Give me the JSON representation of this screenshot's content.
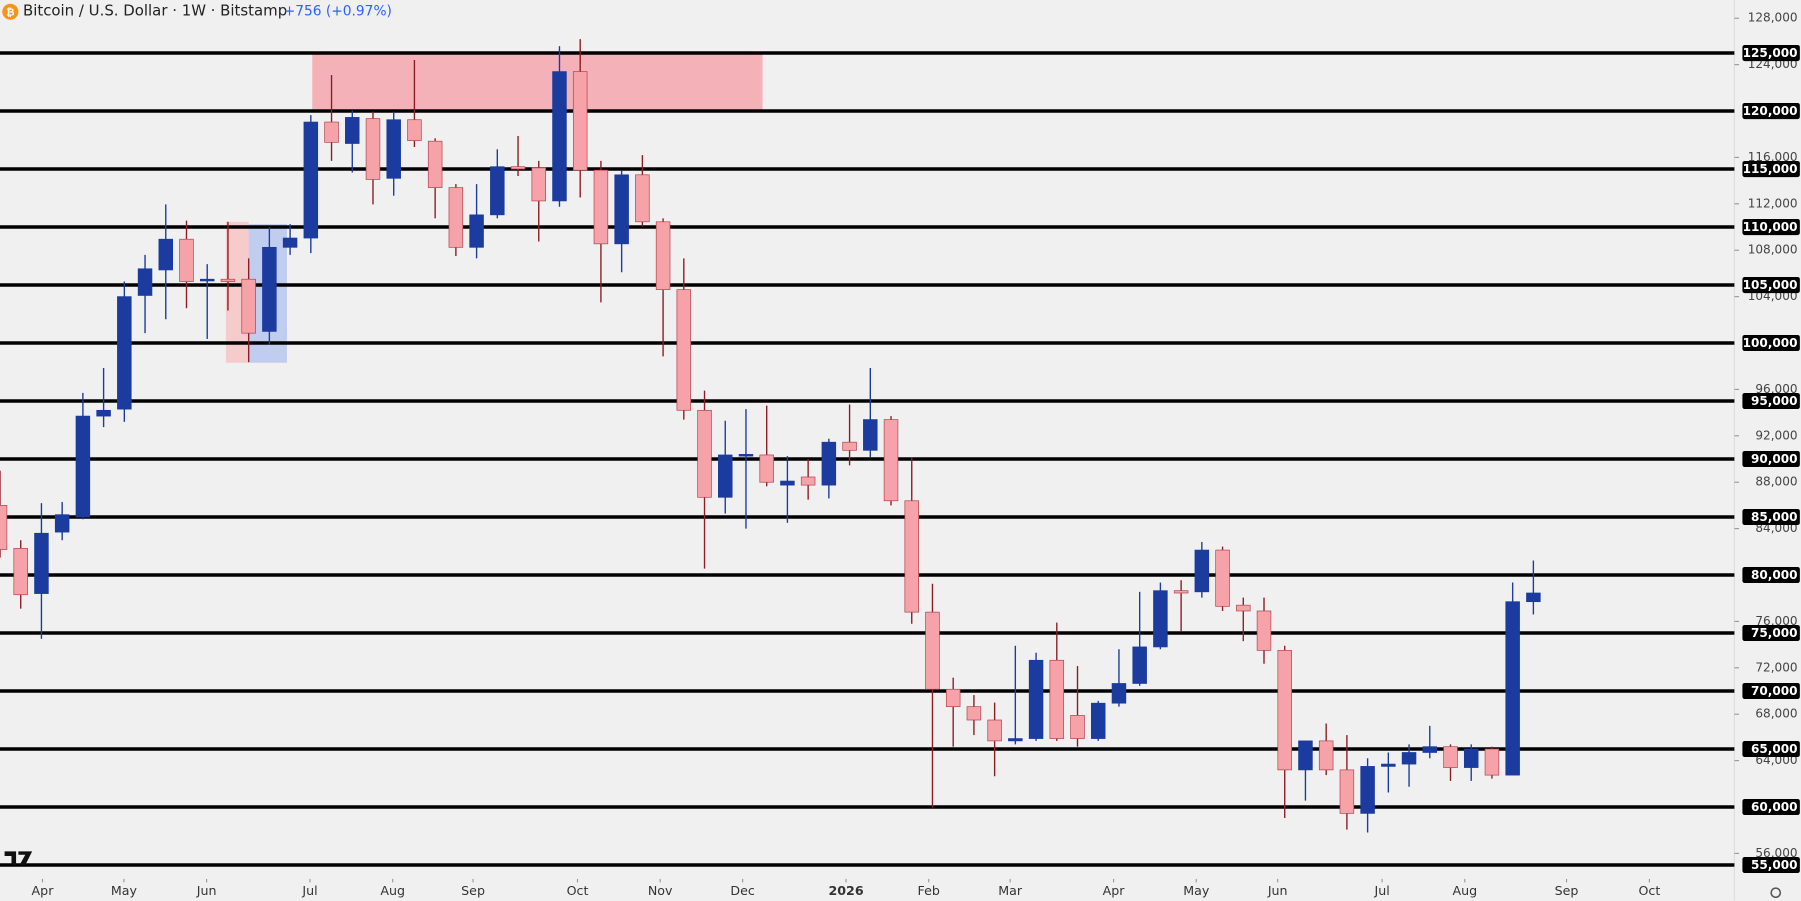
{
  "header": {
    "symbol": "Bitcoin / U.S. Dollar · 1W · Bitstamp",
    "change": "+756 (+0.97%)"
  },
  "chart_data": {
    "type": "candlestick",
    "open": [
      86000,
      82300,
      78400,
      83700,
      85000,
      93700,
      94300,
      104100,
      106300,
      108950,
      105400,
      105500,
      105500,
      101000,
      108250,
      109050,
      119050,
      117200,
      119350,
      114200,
      119250,
      117400,
      113400,
      108250,
      111050,
      115200,
      115100,
      112250,
      123400,
      114900,
      108550,
      114500,
      110450,
      104600,
      94200,
      86700,
      90300,
      90350,
      87750,
      88450,
      87750,
      91450,
      90750,
      93400,
      86400,
      76800,
      70150,
      68650,
      67500,
      65700,
      65900,
      72650,
      67900,
      65900,
      68950,
      70650,
      73800,
      78650,
      78550,
      82150,
      77400,
      76900,
      73500,
      63200,
      65700,
      63200,
      59450,
      63500,
      63700,
      64700,
      65200,
      63400,
      65000,
      62750,
      77700
    ],
    "high": [
      89000,
      83000,
      86200,
      86300,
      95700,
      97850,
      105300,
      107600,
      111950,
      110550,
      106800,
      110450,
      107300,
      110000,
      110250,
      119650,
      123100,
      120050,
      119950,
      119950,
      124400,
      117650,
      113700,
      113700,
      116700,
      117850,
      115700,
      125600,
      126200,
      115700,
      114900,
      116200,
      110750,
      107300,
      95900,
      93300,
      94300,
      94600,
      90250,
      90000,
      91750,
      94700,
      97850,
      93700,
      90150,
      79250,
      71150,
      69650,
      69000,
      73900,
      73300,
      75900,
      72150,
      69150,
      73600,
      78550,
      79350,
      79550,
      82850,
      82450,
      78050,
      78050,
      73900,
      65700,
      67200,
      66200,
      64200,
      64700,
      65400,
      67000,
      65400,
      65400,
      65200,
      79350,
      81250
    ],
    "low": [
      81500,
      77100,
      74500,
      83000,
      84800,
      92750,
      93200,
      100850,
      102050,
      103000,
      100350,
      102800,
      98350,
      99850,
      107600,
      107750,
      115700,
      114700,
      111950,
      112700,
      116900,
      110750,
      107500,
      107300,
      110750,
      114400,
      108750,
      111750,
      112550,
      103500,
      106100,
      110050,
      98850,
      93400,
      80550,
      85300,
      84000,
      87650,
      84500,
      86500,
      86600,
      89450,
      90150,
      86000,
      75800,
      59950,
      65200,
      66200,
      62650,
      65400,
      65700,
      65700,
      65200,
      65700,
      68650,
      70450,
      73600,
      75100,
      78050,
      76900,
      74300,
      72350,
      59050,
      60550,
      62750,
      58050,
      57800,
      61250,
      61750,
      64200,
      62250,
      62250,
      62450,
      62750,
      76600
    ],
    "close": [
      82200,
      78300,
      83600,
      85200,
      93700,
      94200,
      104000,
      106400,
      108950,
      105300,
      105500,
      105300,
      100850,
      108250,
      109050,
      119050,
      117300,
      119450,
      114100,
      119250,
      117450,
      113400,
      108250,
      111050,
      115200,
      115000,
      112250,
      123400,
      114900,
      108550,
      114500,
      110450,
      104600,
      94200,
      86700,
      90350,
      90400,
      88000,
      88100,
      87750,
      91450,
      90750,
      93400,
      86400,
      76800,
      70150,
      68650,
      67500,
      65700,
      65900,
      72650,
      65900,
      65900,
      68950,
      70650,
      73800,
      78650,
      78450,
      82150,
      77300,
      76900,
      73500,
      63200,
      65700,
      63200,
      59450,
      63500,
      63700,
      64700,
      65200,
      63400,
      65000,
      62750,
      77700,
      78450
    ],
    "up_color": "#1b3b9e",
    "down_color": "#f5a3a8",
    "xlim": [
      0,
      83.7
    ],
    "ylim": [
      53800,
      129550
    ],
    "xticks": [
      {
        "value": 2.05,
        "label": "Apr"
      },
      {
        "value": 5.98,
        "label": "May"
      },
      {
        "value": 9.97,
        "label": "Jun"
      },
      {
        "value": 14.96,
        "label": "Jul"
      },
      {
        "value": 18.95,
        "label": "Aug"
      },
      {
        "value": 22.83,
        "label": "Sep"
      },
      {
        "value": 27.87,
        "label": "Oct"
      },
      {
        "value": 31.86,
        "label": "Nov"
      },
      {
        "value": 35.84,
        "label": "Dec"
      },
      {
        "value": 40.83,
        "label": "2026"
      },
      {
        "value": 44.82,
        "label": "Feb"
      },
      {
        "value": 48.75,
        "label": "Mar"
      },
      {
        "value": 53.74,
        "label": "Apr"
      },
      {
        "value": 57.73,
        "label": "May"
      },
      {
        "value": 61.66,
        "label": "Jun"
      },
      {
        "value": 66.7,
        "label": "Jul"
      },
      {
        "value": 70.69,
        "label": "Aug"
      },
      {
        "value": 75.6,
        "label": "Sep"
      },
      {
        "value": 79.6,
        "label": "Oct"
      }
    ],
    "yticks": [
      {
        "value": 128000,
        "label": "128,000"
      },
      {
        "value": 124000,
        "label": "124,000"
      },
      {
        "value": 116000,
        "label": "116,000"
      },
      {
        "value": 112000,
        "label": "112,000"
      },
      {
        "value": 108000,
        "label": "108,000"
      },
      {
        "value": 104000,
        "label": "104,000"
      },
      {
        "value": 96000,
        "label": "96,000"
      },
      {
        "value": 92000,
        "label": "92,000"
      },
      {
        "value": 88000,
        "label": "88,000"
      },
      {
        "value": 84000,
        "label": "84,000"
      },
      {
        "value": 76000,
        "label": "76,000"
      },
      {
        "value": 72000,
        "label": "72,000"
      },
      {
        "value": 68000,
        "label": "68,000"
      },
      {
        "value": 64000,
        "label": "64,000"
      },
      {
        "value": 56000,
        "label": "56,000"
      }
    ],
    "levels": [
      {
        "value": 125000,
        "label": "125,000"
      },
      {
        "value": 120000,
        "label": "120,000"
      },
      {
        "value": 115000,
        "label": "115,000"
      },
      {
        "value": 110000,
        "label": "110,000"
      },
      {
        "value": 105000,
        "label": "105,000"
      },
      {
        "value": 100000,
        "label": "100,000"
      },
      {
        "value": 95000,
        "label": "95,000"
      },
      {
        "value": 90000,
        "label": "90,000"
      },
      {
        "value": 85000,
        "label": "85,000"
      },
      {
        "value": 80000,
        "label": "80,000"
      },
      {
        "value": 75000,
        "label": "75,000"
      },
      {
        "value": 70000,
        "label": "70,000"
      },
      {
        "value": 65000,
        "label": "65,000"
      },
      {
        "value": 60000,
        "label": "60,000"
      },
      {
        "value": 55000,
        "label": "55,000"
      }
    ],
    "zones": [
      {
        "x": [
          15.07,
          36.8
        ],
        "y": [
          120000,
          125000
        ],
        "color": "#f4a7ae"
      },
      {
        "x": [
          10.9,
          12.0
        ],
        "y": [
          98300,
          110450
        ],
        "color": "#f6c4c4"
      },
      {
        "x": [
          12.0,
          13.85
        ],
        "y": [
          98300,
          110250
        ],
        "color": "#b7c7ef"
      }
    ]
  }
}
